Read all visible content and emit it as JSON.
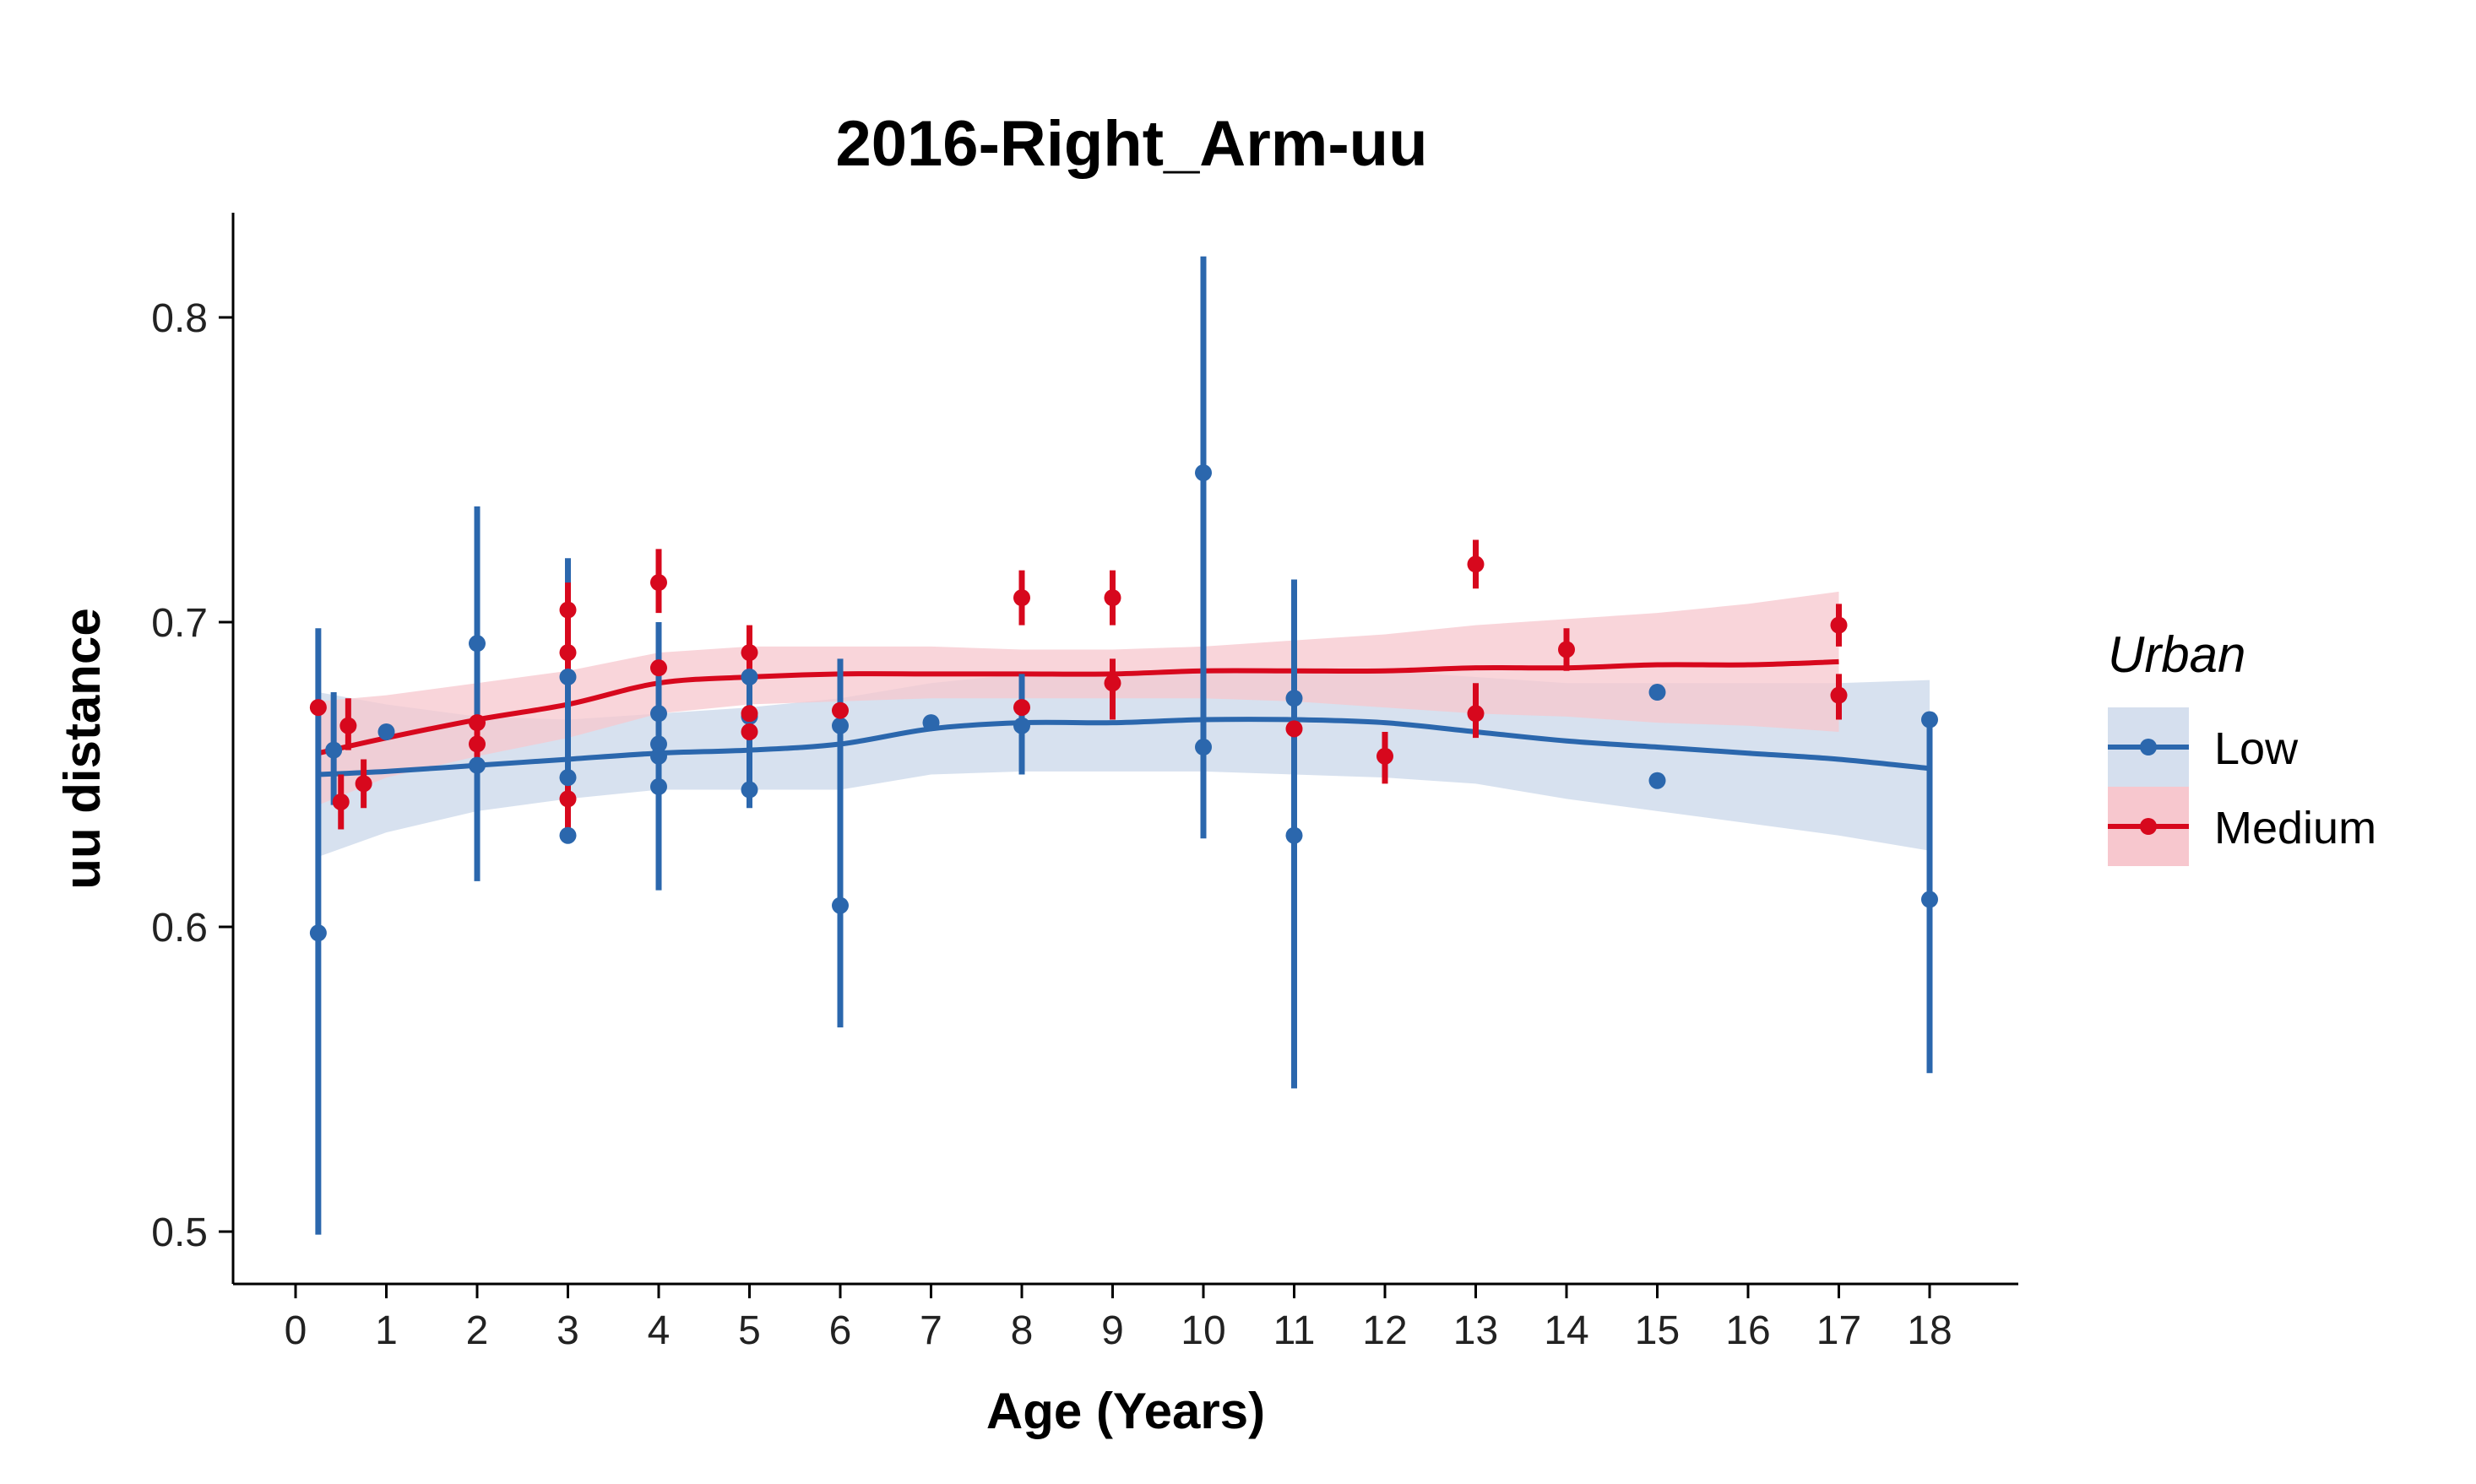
{
  "chart_data": {
    "type": "scatter",
    "title": "2016-Right_Arm-uu",
    "xlabel": "Age (Years)",
    "ylabel": "uu distance",
    "xlim": [
      -0.7,
      19.2
    ],
    "ylim": [
      0.483,
      0.835
    ],
    "x_ticks": [
      "0",
      "1",
      "2",
      "3",
      "4",
      "5",
      "6",
      "7",
      "8",
      "9",
      "10",
      "11",
      "12",
      "13",
      "14",
      "15",
      "16",
      "17",
      "18"
    ],
    "y_ticks": [
      "0.5",
      "0.6",
      "0.7",
      "0.8"
    ],
    "grid": false,
    "legend": {
      "title": "Urban",
      "placement": "right"
    },
    "series": [
      {
        "name": "Low",
        "color": "#2b67ad",
        "band_color": "#d5dfee",
        "points": [
          {
            "x": 0.25,
            "y": 0.598,
            "lo": 0.499,
            "hi": 0.698
          },
          {
            "x": 0.42,
            "y": 0.658,
            "lo": 0.64,
            "hi": 0.677
          },
          {
            "x": 1.0,
            "y": 0.664
          },
          {
            "x": 2.0,
            "y": 0.693,
            "lo": 0.615,
            "hi": 0.738
          },
          {
            "x": 2.0,
            "y": 0.653
          },
          {
            "x": 3.0,
            "y": 0.682,
            "lo": 0.63,
            "hi": 0.721
          },
          {
            "x": 3.0,
            "y": 0.649
          },
          {
            "x": 3.0,
            "y": 0.63
          },
          {
            "x": 4.0,
            "y": 0.67,
            "lo": 0.612,
            "hi": 0.7
          },
          {
            "x": 4.0,
            "y": 0.66
          },
          {
            "x": 4.0,
            "y": 0.656
          },
          {
            "x": 4.0,
            "y": 0.646
          },
          {
            "x": 5.0,
            "y": 0.682,
            "lo": 0.639,
            "hi": 0.69
          },
          {
            "x": 5.0,
            "y": 0.669
          },
          {
            "x": 5.0,
            "y": 0.645
          },
          {
            "x": 6.0,
            "y": 0.666,
            "lo": 0.567,
            "hi": 0.688
          },
          {
            "x": 6.0,
            "y": 0.607
          },
          {
            "x": 7.0,
            "y": 0.667
          },
          {
            "x": 8.0,
            "y": 0.666,
            "lo": 0.65,
            "hi": 0.683
          },
          {
            "x": 10.0,
            "y": 0.749,
            "lo": 0.629,
            "hi": 0.82
          },
          {
            "x": 10.0,
            "y": 0.659
          },
          {
            "x": 11.0,
            "y": 0.675,
            "lo": 0.547,
            "hi": 0.714
          },
          {
            "x": 11.0,
            "y": 0.63
          },
          {
            "x": 15.0,
            "y": 0.677
          },
          {
            "x": 15.0,
            "y": 0.648
          },
          {
            "x": 18.0,
            "y": 0.668,
            "lo": 0.552,
            "hi": 0.67
          },
          {
            "x": 18.0,
            "y": 0.609
          }
        ],
        "trend": [
          {
            "x": 0.25,
            "y": 0.65,
            "lo": 0.623,
            "hi": 0.677
          },
          {
            "x": 1,
            "y": 0.651,
            "lo": 0.631,
            "hi": 0.673
          },
          {
            "x": 2,
            "y": 0.653,
            "lo": 0.638,
            "hi": 0.669
          },
          {
            "x": 3,
            "y": 0.655,
            "lo": 0.642,
            "hi": 0.668
          },
          {
            "x": 4,
            "y": 0.657,
            "lo": 0.645,
            "hi": 0.67
          },
          {
            "x": 5,
            "y": 0.658,
            "lo": 0.645,
            "hi": 0.672
          },
          {
            "x": 6,
            "y": 0.66,
            "lo": 0.645,
            "hi": 0.675
          },
          {
            "x": 7,
            "y": 0.665,
            "lo": 0.65,
            "hi": 0.68
          },
          {
            "x": 8,
            "y": 0.667,
            "lo": 0.651,
            "hi": 0.683
          },
          {
            "x": 9,
            "y": 0.667,
            "lo": 0.651,
            "hi": 0.683
          },
          {
            "x": 10,
            "y": 0.668,
            "lo": 0.651,
            "hi": 0.684
          },
          {
            "x": 11,
            "y": 0.668,
            "lo": 0.65,
            "hi": 0.684
          },
          {
            "x": 12,
            "y": 0.667,
            "lo": 0.649,
            "hi": 0.684
          },
          {
            "x": 13,
            "y": 0.664,
            "lo": 0.647,
            "hi": 0.682
          },
          {
            "x": 14,
            "y": 0.661,
            "lo": 0.642,
            "hi": 0.68
          },
          {
            "x": 15,
            "y": 0.659,
            "lo": 0.638,
            "hi": 0.68
          },
          {
            "x": 16,
            "y": 0.657,
            "lo": 0.634,
            "hi": 0.68
          },
          {
            "x": 17,
            "y": 0.655,
            "lo": 0.63,
            "hi": 0.68
          },
          {
            "x": 18,
            "y": 0.652,
            "lo": 0.625,
            "hi": 0.681
          }
        ]
      },
      {
        "name": "Medium",
        "color": "#d7081d",
        "band_color": "#f7c7ce",
        "points": [
          {
            "x": 0.25,
            "y": 0.672
          },
          {
            "x": 0.5,
            "y": 0.641,
            "lo": 0.632,
            "hi": 0.65
          },
          {
            "x": 0.58,
            "y": 0.666,
            "lo": 0.658,
            "hi": 0.675
          },
          {
            "x": 0.75,
            "y": 0.647,
            "lo": 0.639,
            "hi": 0.655
          },
          {
            "x": 2.0,
            "y": 0.66,
            "lo": 0.652,
            "hi": 0.668
          },
          {
            "x": 2.0,
            "y": 0.667
          },
          {
            "x": 3.0,
            "y": 0.704,
            "lo": 0.694,
            "hi": 0.713
          },
          {
            "x": 3.0,
            "y": 0.69,
            "lo": 0.682,
            "hi": 0.699
          },
          {
            "x": 3.0,
            "y": 0.642,
            "lo": 0.631,
            "hi": 0.651
          },
          {
            "x": 4.0,
            "y": 0.713,
            "lo": 0.703,
            "hi": 0.724
          },
          {
            "x": 4.0,
            "y": 0.685
          },
          {
            "x": 5.0,
            "y": 0.69,
            "lo": 0.681,
            "hi": 0.699
          },
          {
            "x": 5.0,
            "y": 0.67
          },
          {
            "x": 5.0,
            "y": 0.664
          },
          {
            "x": 6.0,
            "y": 0.671
          },
          {
            "x": 8.0,
            "y": 0.708,
            "lo": 0.699,
            "hi": 0.717
          },
          {
            "x": 8.0,
            "y": 0.672
          },
          {
            "x": 9.0,
            "y": 0.708,
            "lo": 0.699,
            "hi": 0.717
          },
          {
            "x": 9.0,
            "y": 0.68,
            "lo": 0.668,
            "hi": 0.688
          },
          {
            "x": 11.0,
            "y": 0.665
          },
          {
            "x": 12.0,
            "y": 0.656,
            "lo": 0.647,
            "hi": 0.664
          },
          {
            "x": 13.0,
            "y": 0.719,
            "lo": 0.711,
            "hi": 0.727
          },
          {
            "x": 13.0,
            "y": 0.67,
            "lo": 0.662,
            "hi": 0.68
          },
          {
            "x": 14.0,
            "y": 0.691,
            "lo": 0.684,
            "hi": 0.698
          },
          {
            "x": 17.0,
            "y": 0.699,
            "lo": 0.692,
            "hi": 0.706
          },
          {
            "x": 17.0,
            "y": 0.676,
            "lo": 0.668,
            "hi": 0.683
          }
        ],
        "trend": [
          {
            "x": 0.25,
            "y": 0.657,
            "lo": 0.64,
            "hi": 0.674
          },
          {
            "x": 1,
            "y": 0.662,
            "lo": 0.649,
            "hi": 0.676
          },
          {
            "x": 2,
            "y": 0.668,
            "lo": 0.656,
            "hi": 0.68
          },
          {
            "x": 3,
            "y": 0.673,
            "lo": 0.662,
            "hi": 0.684
          },
          {
            "x": 4,
            "y": 0.68,
            "lo": 0.67,
            "hi": 0.69
          },
          {
            "x": 5,
            "y": 0.682,
            "lo": 0.673,
            "hi": 0.692
          },
          {
            "x": 6,
            "y": 0.683,
            "lo": 0.674,
            "hi": 0.692
          },
          {
            "x": 7,
            "y": 0.683,
            "lo": 0.675,
            "hi": 0.692
          },
          {
            "x": 8,
            "y": 0.683,
            "lo": 0.675,
            "hi": 0.691
          },
          {
            "x": 9,
            "y": 0.683,
            "lo": 0.675,
            "hi": 0.691
          },
          {
            "x": 10,
            "y": 0.684,
            "lo": 0.675,
            "hi": 0.692
          },
          {
            "x": 11,
            "y": 0.684,
            "lo": 0.674,
            "hi": 0.694
          },
          {
            "x": 12,
            "y": 0.684,
            "lo": 0.672,
            "hi": 0.696
          },
          {
            "x": 13,
            "y": 0.685,
            "lo": 0.67,
            "hi": 0.699
          },
          {
            "x": 14,
            "y": 0.685,
            "lo": 0.669,
            "hi": 0.701
          },
          {
            "x": 15,
            "y": 0.686,
            "lo": 0.667,
            "hi": 0.703
          },
          {
            "x": 16,
            "y": 0.686,
            "lo": 0.666,
            "hi": 0.706
          },
          {
            "x": 17,
            "y": 0.687,
            "lo": 0.664,
            "hi": 0.71
          }
        ]
      }
    ]
  }
}
